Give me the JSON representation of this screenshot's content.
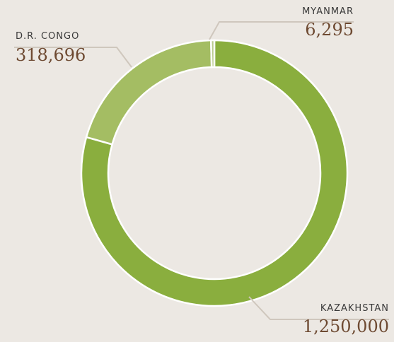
{
  "chart_data": {
    "type": "donut",
    "categories": [
      "KAZAKHSTAN",
      "D.R. CONGO",
      "MYANMAR"
    ],
    "values": [
      1250000,
      318696,
      6295
    ],
    "value_labels": [
      "1,250,000",
      "318,696",
      "6,295"
    ],
    "colors": [
      "#8aae3e",
      "#a4bd63",
      "#b9cb8e"
    ]
  }
}
